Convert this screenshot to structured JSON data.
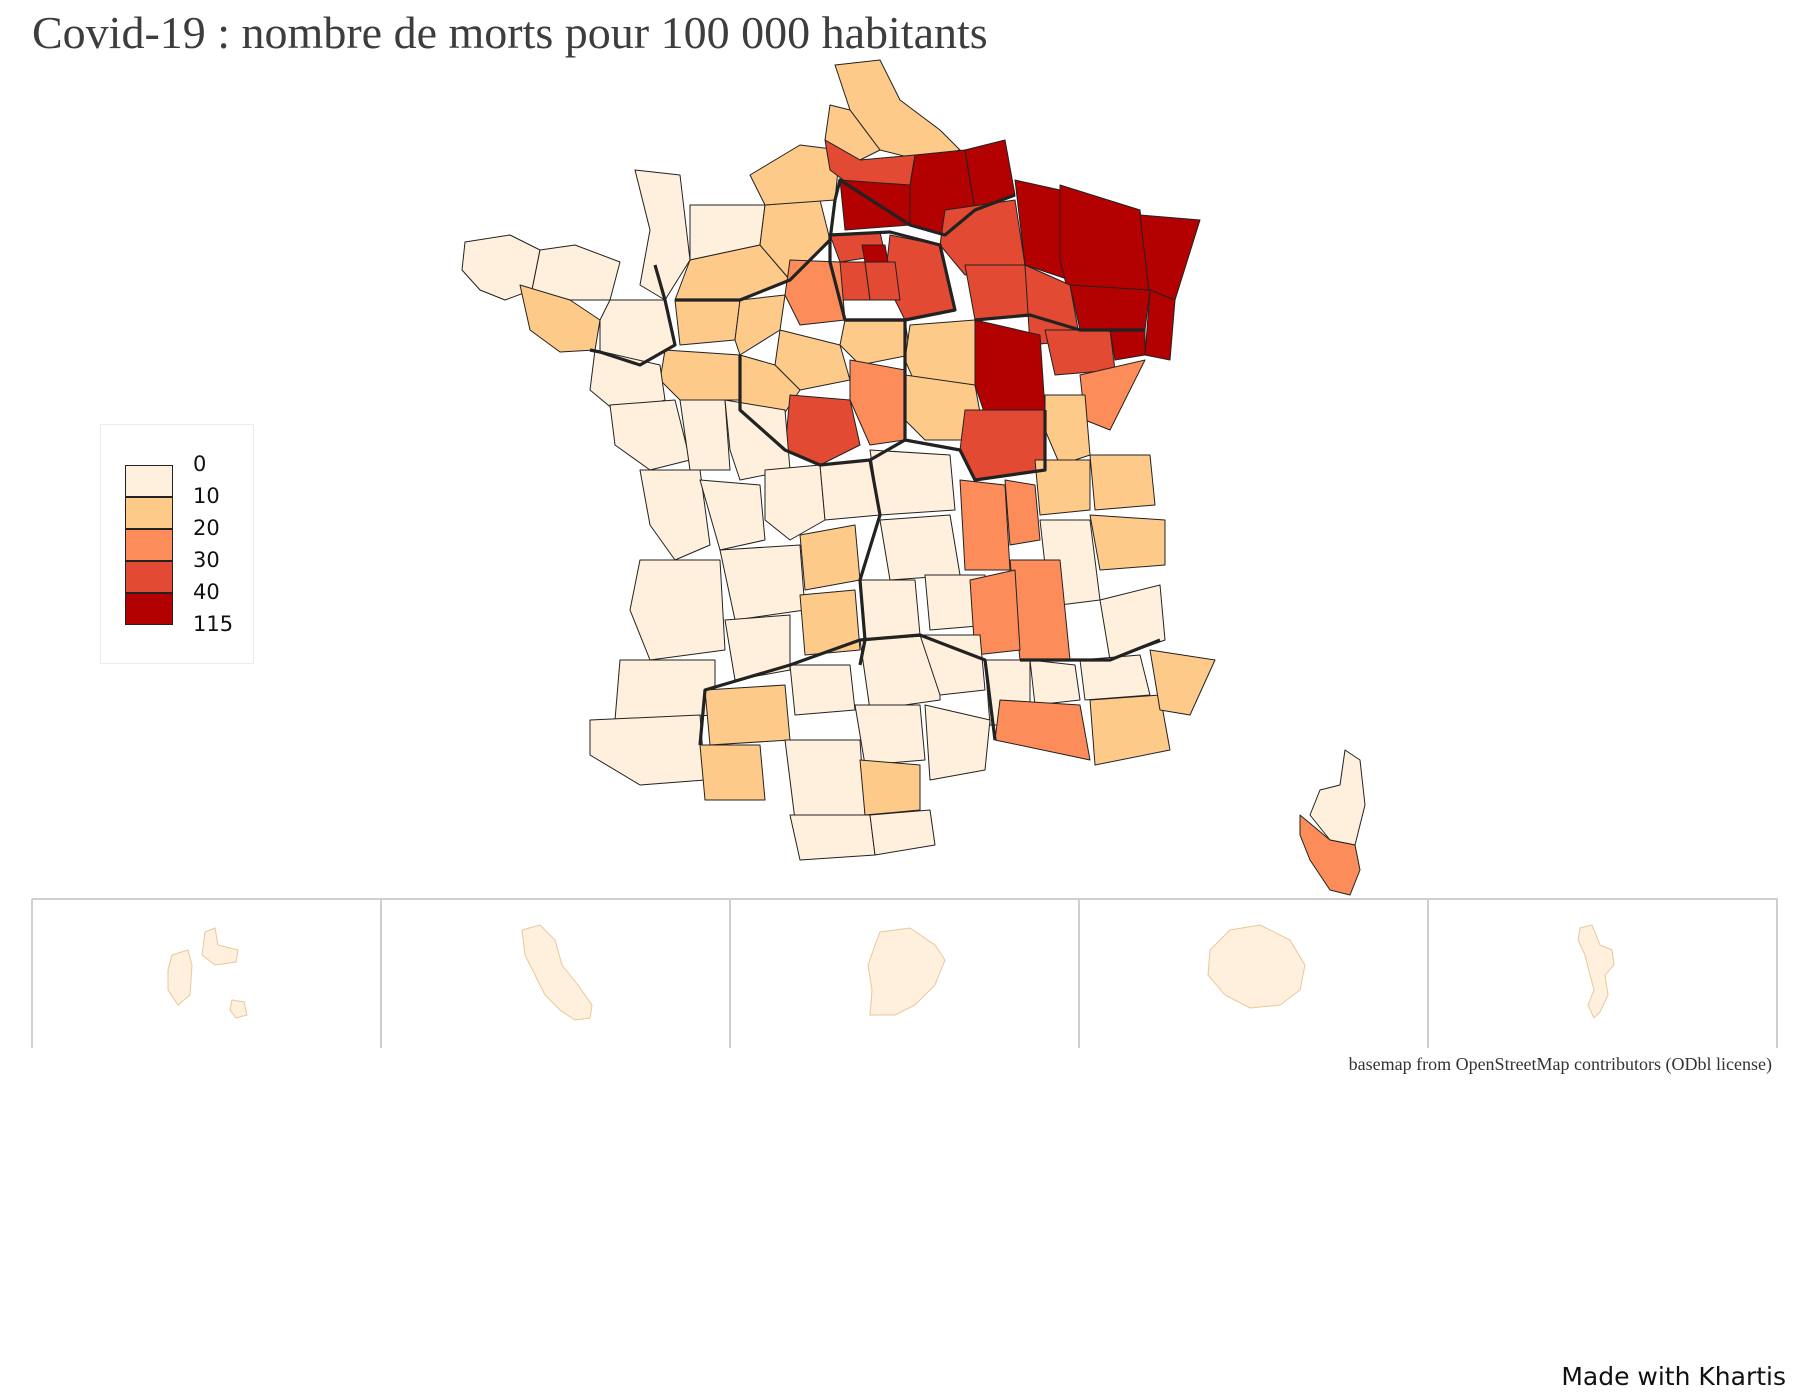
{
  "title": "Covid-19 : nombre de morts pour 100 000 habitants",
  "legend": {
    "breaks": [
      "0",
      "10",
      "20",
      "30",
      "40",
      "115"
    ],
    "classes": [
      {
        "color": "#fef0dc"
      },
      {
        "color": "#fdca8a"
      },
      {
        "color": "#fc8c59"
      },
      {
        "color": "#e24a33"
      },
      {
        "color": "#b30000"
      }
    ]
  },
  "insets": [
    {
      "icon": "guadeloupe-outline",
      "class": 0
    },
    {
      "icon": "martinique-outline",
      "class": 0
    },
    {
      "icon": "guyane-outline",
      "class": 0
    },
    {
      "icon": "la-reunion-outline",
      "class": 0
    },
    {
      "icon": "mayotte-outline",
      "class": 0
    }
  ],
  "credit": "basemap from OpenStreetMap contributors (ODbl license)",
  "made_with": "Made with Khartis"
}
